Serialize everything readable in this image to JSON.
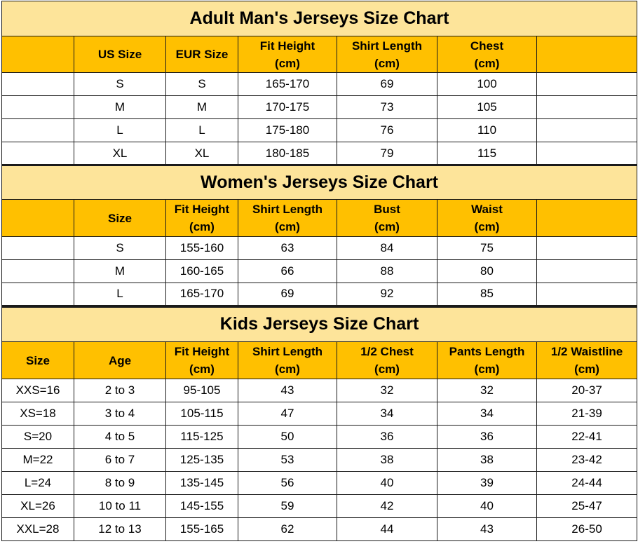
{
  "men": {
    "title": "Adult Man's Jerseys Size Chart",
    "headers": [
      {
        "l1": "",
        "l2": ""
      },
      {
        "l1": "US Size",
        "l2": ""
      },
      {
        "l1": "EUR Size",
        "l2": ""
      },
      {
        "l1": "Fit Height",
        "l2": "(cm)"
      },
      {
        "l1": "Shirt Length",
        "l2": "(cm)"
      },
      {
        "l1": "Chest",
        "l2": "(cm)"
      },
      {
        "l1": "",
        "l2": ""
      }
    ],
    "rows": [
      [
        "",
        "S",
        "S",
        "165-170",
        "69",
        "100",
        ""
      ],
      [
        "",
        "M",
        "M",
        "170-175",
        "73",
        "105",
        ""
      ],
      [
        "",
        "L",
        "L",
        "175-180",
        "76",
        "110",
        ""
      ],
      [
        "",
        "XL",
        "XL",
        "180-185",
        "79",
        "115",
        ""
      ]
    ]
  },
  "women": {
    "title": "Women's Jerseys Size Chart",
    "headers": [
      {
        "l1": "",
        "l2": ""
      },
      {
        "l1": "Size",
        "l2": ""
      },
      {
        "l1": "Fit Height",
        "l2": "(cm)"
      },
      {
        "l1": "Shirt Length",
        "l2": "(cm)"
      },
      {
        "l1": "Bust",
        "l2": "(cm)"
      },
      {
        "l1": "Waist",
        "l2": "(cm)"
      },
      {
        "l1": "",
        "l2": ""
      }
    ],
    "rows": [
      [
        "",
        "S",
        "155-160",
        "63",
        "84",
        "75",
        ""
      ],
      [
        "",
        "M",
        "160-165",
        "66",
        "88",
        "80",
        ""
      ],
      [
        "",
        "L",
        "165-170",
        "69",
        "92",
        "85",
        ""
      ]
    ]
  },
  "kids": {
    "title": "Kids Jerseys Size Chart",
    "headers": [
      {
        "l1": "Size",
        "l2": ""
      },
      {
        "l1": "Age",
        "l2": ""
      },
      {
        "l1": "Fit Height",
        "l2": "(cm)"
      },
      {
        "l1": "Shirt Length",
        "l2": "(cm)"
      },
      {
        "l1": "1/2 Chest",
        "l2": "(cm)"
      },
      {
        "l1": "Pants Length",
        "l2": "(cm)"
      },
      {
        "l1": "1/2 Waistline",
        "l2": "(cm)"
      }
    ],
    "rows": [
      [
        "XXS=16",
        "2 to 3",
        "95-105",
        "43",
        "32",
        "32",
        "20-37"
      ],
      [
        "XS=18",
        "3 to 4",
        "105-115",
        "47",
        "34",
        "34",
        "21-39"
      ],
      [
        "S=20",
        "4 to 5",
        "115-125",
        "50",
        "36",
        "36",
        "22-41"
      ],
      [
        "M=22",
        "6 to 7",
        "125-135",
        "53",
        "38",
        "38",
        "23-42"
      ],
      [
        "L=24",
        "8 to 9",
        "135-145",
        "56",
        "40",
        "39",
        "24-44"
      ],
      [
        "XL=26",
        "10 to 11",
        "145-155",
        "59",
        "42",
        "40",
        "25-47"
      ],
      [
        "XXL=28",
        "12 to 13",
        "155-165",
        "62",
        "44",
        "43",
        "26-50"
      ]
    ]
  }
}
